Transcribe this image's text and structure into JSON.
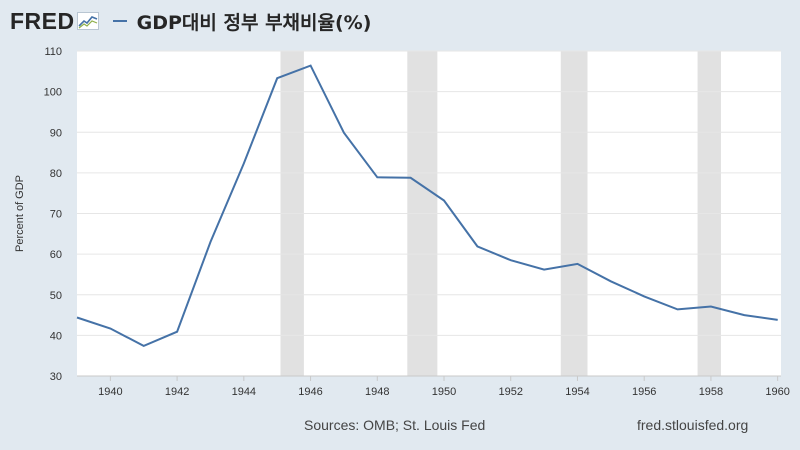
{
  "header": {
    "logo_text": "FRED",
    "logo_icon": "chart-line-icon",
    "title": "GDP대비 정부 부채비율(%)"
  },
  "footer": {
    "sources": "Sources: OMB; St. Louis Fed",
    "site": "fred.stlouisfed.org"
  },
  "colors": {
    "background": "#e1e9f0",
    "plot_background": "#ffffff",
    "line": "#4572a7",
    "recession": "#e1e1e1",
    "grid": "#e6e6e6"
  },
  "chart_data": {
    "type": "line",
    "ylabel": "Percent of GDP",
    "xlabel": "",
    "xlim": [
      1939,
      1960.1
    ],
    "ylim": [
      30,
      110
    ],
    "yticks": [
      30,
      40,
      50,
      60,
      70,
      80,
      90,
      100,
      110
    ],
    "xticks": [
      1940,
      1942,
      1944,
      1946,
      1948,
      1950,
      1952,
      1954,
      1956,
      1958,
      1960
    ],
    "grid": true,
    "recessions": [
      [
        1945.1,
        1945.8
      ],
      [
        1948.9,
        1949.8
      ],
      [
        1953.5,
        1954.3
      ],
      [
        1957.6,
        1958.3
      ]
    ],
    "series": [
      {
        "x": [
          1939,
          1940,
          1941,
          1942,
          1943,
          1944,
          1945,
          1946,
          1947,
          1948,
          1949,
          1950,
          1951,
          1952,
          1953,
          1954,
          1955,
          1956,
          1957,
          1958,
          1959,
          1960
        ],
        "values": [
          44.4,
          41.7,
          37.4,
          40.9,
          63.0,
          82.3,
          103.3,
          106.4,
          89.9,
          78.9,
          78.8,
          73.2,
          61.9,
          58.5,
          56.2,
          57.6,
          53.3,
          49.6,
          46.4,
          47.1,
          45.0,
          43.8
        ]
      }
    ]
  }
}
